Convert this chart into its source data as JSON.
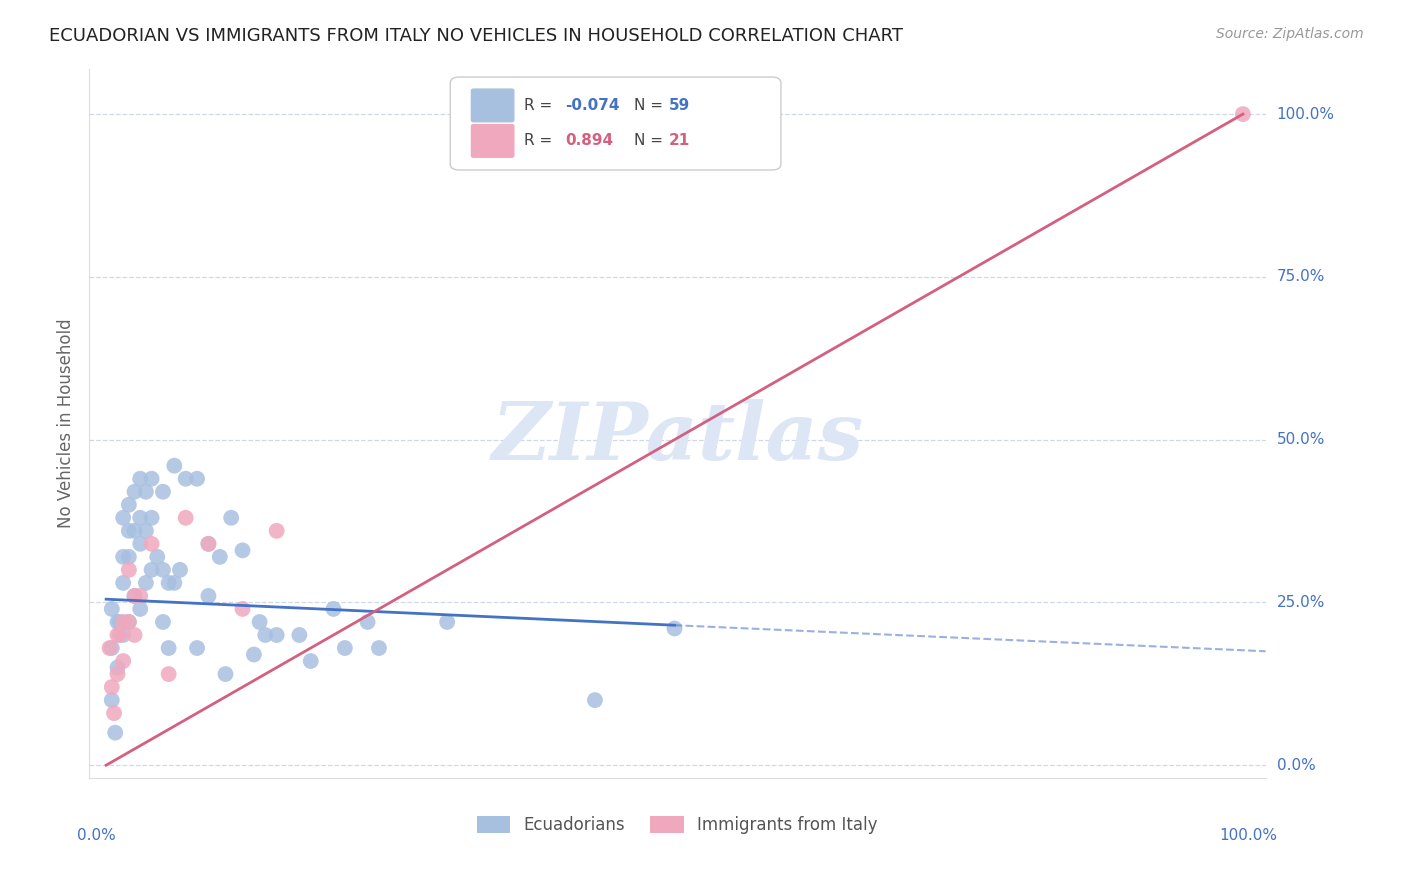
{
  "title": "ECUADORIAN VS IMMIGRANTS FROM ITALY NO VEHICLES IN HOUSEHOLD CORRELATION CHART",
  "source": "Source: ZipAtlas.com",
  "ylabel": "No Vehicles in Household",
  "ytick_labels": [
    "0.0%",
    "25.0%",
    "50.0%",
    "75.0%",
    "100.0%"
  ],
  "ytick_values": [
    0,
    25,
    50,
    75,
    100
  ],
  "xtick_values": [
    0,
    25,
    50,
    75,
    100
  ],
  "xlim": [
    -1.5,
    102
  ],
  "ylim": [
    -2,
    107
  ],
  "legend_label1": "Ecuadorians",
  "legend_label2": "Immigrants from Italy",
  "blue_color": "#a8c0e0",
  "pink_color": "#f0a8be",
  "blue_line_color": "#4472c4",
  "pink_line_color": "#d46080",
  "watermark_color": "#dce6f5",
  "background_color": "#ffffff",
  "grid_color": "#d0d8e8",
  "title_color": "#222222",
  "axis_label_color": "#4472c4",
  "ecuadorians_x": [
    0.5,
    0.5,
    0.5,
    0.8,
    1.0,
    1.0,
    1.2,
    1.5,
    1.5,
    1.5,
    1.5,
    2.0,
    2.0,
    2.0,
    2.0,
    2.5,
    2.5,
    2.5,
    3.0,
    3.0,
    3.0,
    3.0,
    3.5,
    3.5,
    3.5,
    4.0,
    4.0,
    4.0,
    4.5,
    5.0,
    5.0,
    5.0,
    5.5,
    5.5,
    6.0,
    6.0,
    6.5,
    7.0,
    8.0,
    8.0,
    9.0,
    9.0,
    10.0,
    10.5,
    11.0,
    12.0,
    13.0,
    13.5,
    14.0,
    15.0,
    17.0,
    18.0,
    20.0,
    21.0,
    23.0,
    24.0,
    30.0,
    43.0,
    50.0
  ],
  "ecuadorians_y": [
    24,
    18,
    10,
    5,
    22,
    15,
    22,
    38,
    32,
    28,
    20,
    40,
    36,
    32,
    22,
    42,
    36,
    26,
    44,
    38,
    34,
    24,
    42,
    36,
    28,
    44,
    38,
    30,
    32,
    42,
    30,
    22,
    28,
    18,
    46,
    28,
    30,
    44,
    44,
    18,
    34,
    26,
    32,
    14,
    38,
    33,
    17,
    22,
    20,
    20,
    20,
    16,
    24,
    18,
    22,
    18,
    22,
    10,
    21
  ],
  "italy_x": [
    0.3,
    0.5,
    0.7,
    1.0,
    1.0,
    1.2,
    1.5,
    1.5,
    2.0,
    2.0,
    2.5,
    2.5,
    3.0,
    4.0,
    5.5,
    7.0,
    9.0,
    12.0,
    15.0,
    100.0
  ],
  "italy_y": [
    18,
    12,
    8,
    20,
    14,
    20,
    22,
    16,
    30,
    22,
    26,
    20,
    26,
    34,
    14,
    38,
    34,
    24,
    36,
    100
  ],
  "blue_line_x0": 0,
  "blue_line_y0": 25.5,
  "blue_line_x1": 50,
  "blue_line_y1": 21.5,
  "blue_dash_x0": 50,
  "blue_dash_y0": 21.5,
  "blue_dash_x1": 102,
  "blue_dash_y1": 17.5,
  "pink_line_x0": 0,
  "pink_line_y0": 0,
  "pink_line_x1": 100,
  "pink_line_y1": 100
}
